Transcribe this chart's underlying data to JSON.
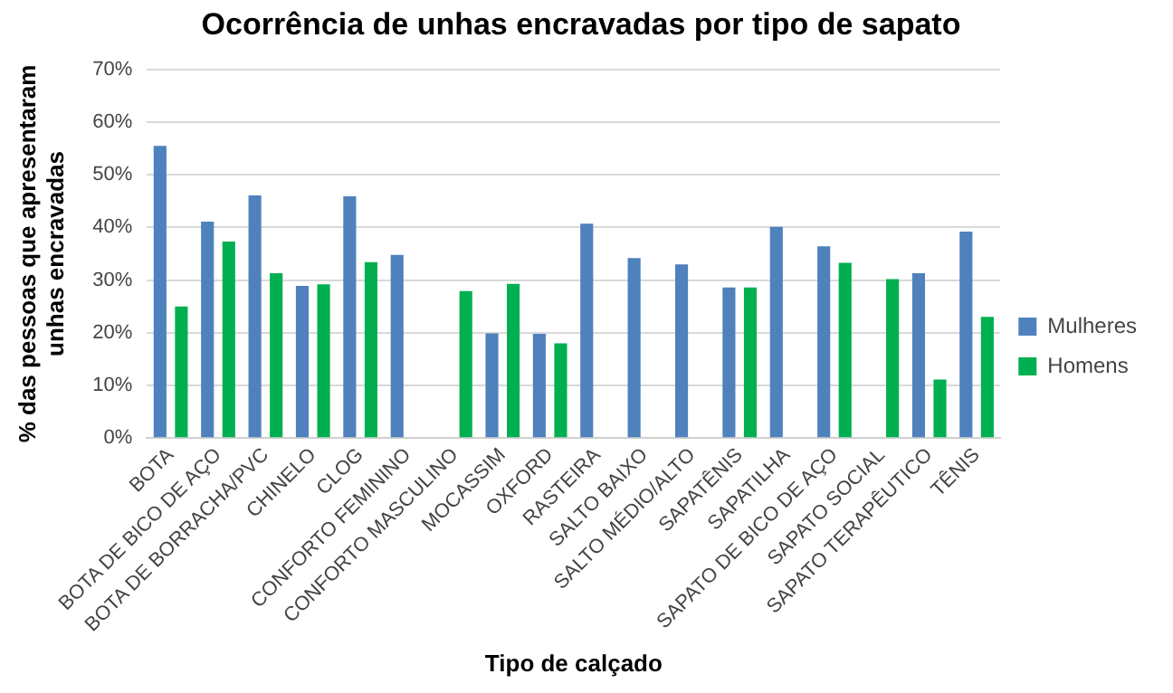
{
  "chart_data": {
    "type": "bar",
    "title": "Ocorrência de unhas encravadas por tipo de sapato",
    "xlabel": "Tipo de calçado",
    "ylabel": "% das pessoas que apresentaram\nunhas encravadas",
    "categories": [
      "BOTA",
      "BOTA DE BICO DE AÇO",
      "BOTA DE BORRACHA/PVC",
      "CHINELO",
      "CLOG",
      "CONFORTO FEMININO",
      "CONFORTO MASCULINO",
      "MOCASSIM",
      "OXFORD",
      "RASTEIRA",
      "SALTO BAIXO",
      "SALTO MÉDIO/ALTO",
      "SAPATÊNIS",
      "SAPATILHA",
      "SAPATO DE BICO DE AÇO",
      "SAPATO SOCIAL",
      "SAPATO TERAPÊUTICO",
      "TÊNIS"
    ],
    "series": [
      {
        "name": "Mulheres",
        "color": "#4f81bd",
        "values": [
          55.5,
          41.1,
          46.1,
          28.9,
          45.9,
          34.8,
          null,
          19.9,
          19.8,
          40.7,
          34.2,
          33.0,
          28.6,
          40.1,
          36.4,
          null,
          31.3,
          39.2
        ]
      },
      {
        "name": "Homens",
        "color": "#00b050",
        "values": [
          25.0,
          37.3,
          31.3,
          29.2,
          33.4,
          null,
          27.9,
          29.3,
          18.0,
          null,
          null,
          null,
          28.6,
          null,
          33.3,
          30.2,
          11.1,
          23.0
        ]
      }
    ],
    "ylim": [
      0,
      70
    ],
    "yticks": [
      {
        "value": 0,
        "label": "0%"
      },
      {
        "value": 10,
        "label": "10%"
      },
      {
        "value": 20,
        "label": "20%"
      },
      {
        "value": 30,
        "label": "30%"
      },
      {
        "value": 40,
        "label": "40%"
      },
      {
        "value": 50,
        "label": "50%"
      },
      {
        "value": 60,
        "label": "60%"
      },
      {
        "value": 70,
        "label": "70%"
      }
    ],
    "grid": "y",
    "legend": "right"
  }
}
